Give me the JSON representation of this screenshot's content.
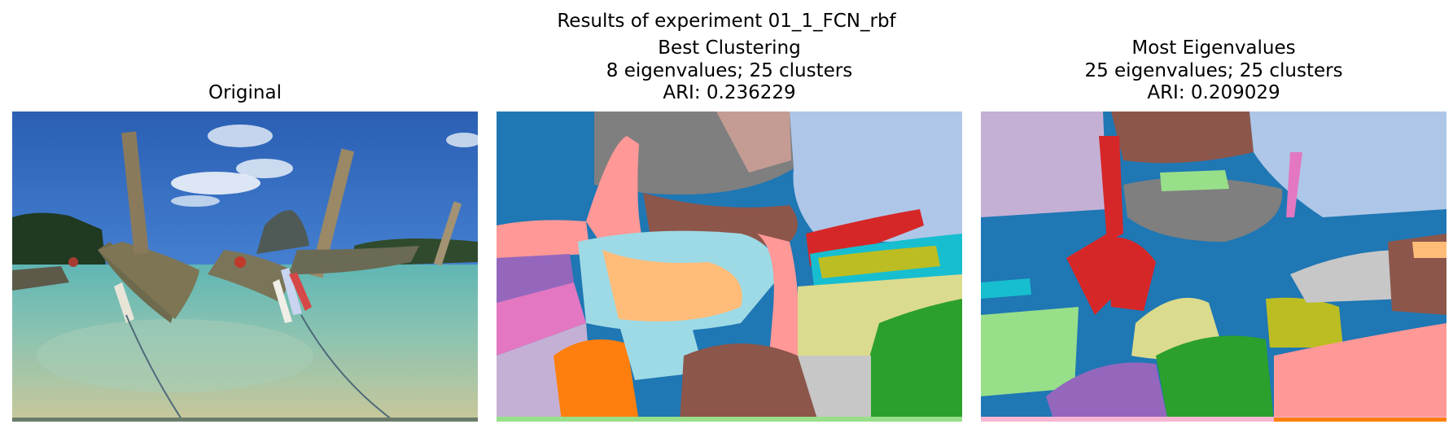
{
  "figure": {
    "suptitle": "Results of experiment 01_1_FCN_rbf"
  },
  "panels": [
    {
      "title": "Original"
    },
    {
      "title_lines": [
        "Best Clustering",
        "8 eigenvalues; 25 clusters",
        "ARI: 0.236229"
      ]
    },
    {
      "title_lines": [
        "Most Eigenvalues",
        "25 eigenvalues; 25 clusters",
        "ARI: 0.209029"
      ]
    }
  ],
  "palette": {
    "blue": "#1f77b4",
    "light_blue": "#aec7e8",
    "orange": "#ff7f0e",
    "light_orange": "#ffbb78",
    "green": "#2ca02c",
    "light_green": "#98df8a",
    "red": "#d62728",
    "pink": "#ff9896",
    "purple": "#9467bd",
    "lavender": "#c5b0d5",
    "brown": "#8c564b",
    "tan": "#c49c94",
    "magenta": "#e377c2",
    "light_magenta": "#f7b6d2",
    "gray": "#7f7f7f",
    "light_gray": "#c7c7c7",
    "olive": "#bcbd22",
    "khaki": "#dbdb8d",
    "cyan": "#17becf",
    "light_cyan": "#9edae5"
  }
}
